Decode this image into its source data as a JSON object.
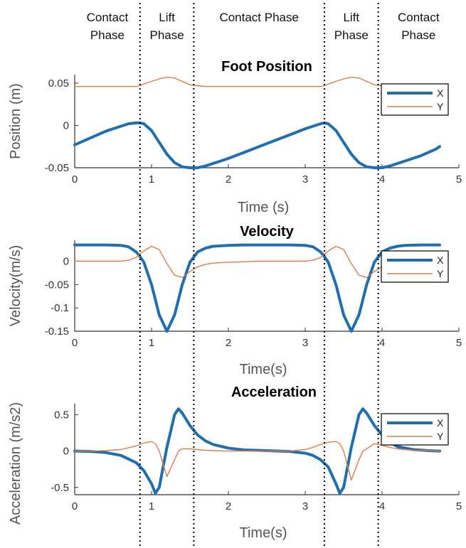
{
  "phases": [
    {
      "label_lines": [
        "Contact",
        "Phase"
      ]
    },
    {
      "label_lines": [
        "Lift",
        "Phase"
      ]
    },
    {
      "label_lines": [
        "Contact Phase"
      ]
    },
    {
      "label_lines": [
        "Lift",
        "Phase"
      ]
    },
    {
      "label_lines": [
        "Contact",
        "Phase"
      ]
    }
  ],
  "phase_boundaries_s": [
    0.85,
    1.55,
    3.25,
    3.95
  ],
  "colors": {
    "x_series": "#1f6fb0",
    "y_series": "#e07b4a",
    "axis": "#333333",
    "boundary": "#000000"
  },
  "chart_data": [
    {
      "type": "line",
      "title": "Foot Position",
      "xlabel": "Time (s)",
      "ylabel": "Position (m)",
      "xlim": [
        0,
        5
      ],
      "ylim": [
        -0.05,
        0.06
      ],
      "xticks": [
        0,
        1,
        2,
        3,
        4,
        5
      ],
      "xtick_labels": [
        "0",
        "1",
        "2",
        "3",
        "4",
        "5"
      ],
      "yticks": [
        -0.05,
        0,
        0.05
      ],
      "ytick_labels": [
        "-0.05",
        "0",
        "0.05"
      ],
      "legend": "top-right",
      "x": [
        0,
        0.1,
        0.2,
        0.3,
        0.4,
        0.5,
        0.6,
        0.7,
        0.8,
        0.85,
        0.9,
        1.0,
        1.1,
        1.2,
        1.3,
        1.4,
        1.5,
        1.6,
        1.7,
        1.8,
        1.9,
        2.0,
        2.2,
        2.4,
        2.6,
        2.8,
        3.0,
        3.1,
        3.2,
        3.25,
        3.3,
        3.4,
        3.5,
        3.6,
        3.7,
        3.8,
        3.9,
        4.0,
        4.1,
        4.2,
        4.3,
        4.4,
        4.5,
        4.6,
        4.7,
        4.75
      ],
      "series": [
        {
          "name": "X",
          "values": [
            -0.023,
            -0.019,
            -0.015,
            -0.011,
            -0.007,
            -0.004,
            -0.001,
            0.002,
            0.003,
            0.003,
            0.002,
            -0.006,
            -0.02,
            -0.034,
            -0.044,
            -0.049,
            -0.05,
            -0.05,
            -0.048,
            -0.045,
            -0.042,
            -0.039,
            -0.032,
            -0.025,
            -0.018,
            -0.011,
            -0.004,
            -0.001,
            0.002,
            0.003,
            0.002,
            -0.006,
            -0.02,
            -0.034,
            -0.044,
            -0.049,
            -0.05,
            -0.05,
            -0.048,
            -0.045,
            -0.042,
            -0.039,
            -0.036,
            -0.032,
            -0.028,
            -0.025
          ]
        },
        {
          "name": "Y",
          "values": [
            0.046,
            0.046,
            0.046,
            0.046,
            0.046,
            0.046,
            0.046,
            0.046,
            0.046,
            0.047,
            0.049,
            0.052,
            0.055,
            0.057,
            0.056,
            0.052,
            0.048,
            0.047,
            0.046,
            0.046,
            0.046,
            0.046,
            0.046,
            0.046,
            0.046,
            0.046,
            0.046,
            0.046,
            0.046,
            0.047,
            0.049,
            0.052,
            0.055,
            0.057,
            0.056,
            0.052,
            0.048,
            0.047,
            0.046,
            0.046,
            0.046,
            0.046,
            0.046,
            0.046,
            0.046,
            0.046
          ]
        }
      ]
    },
    {
      "type": "line",
      "title": "Velocity",
      "xlabel": "Time(s)",
      "ylabel": "Velocity(m/s)",
      "xlim": [
        0,
        5
      ],
      "ylim": [
        -0.15,
        0.045
      ],
      "xticks": [
        0,
        1,
        2,
        3,
        4,
        5
      ],
      "xtick_labels": [
        "0",
        "1",
        "2",
        "3",
        "4",
        "5"
      ],
      "yticks": [
        -0.15,
        -0.1,
        -0.05,
        0
      ],
      "ytick_labels": [
        "-0.15",
        "-0.1",
        "-0.05",
        "0"
      ],
      "legend": "right",
      "x": [
        0,
        0.2,
        0.4,
        0.6,
        0.7,
        0.8,
        0.85,
        0.9,
        1.0,
        1.1,
        1.2,
        1.3,
        1.4,
        1.5,
        1.6,
        1.7,
        1.8,
        2.0,
        2.2,
        2.4,
        2.6,
        2.8,
        3.0,
        3.1,
        3.2,
        3.25,
        3.3,
        3.4,
        3.5,
        3.6,
        3.7,
        3.8,
        3.9,
        4.0,
        4.1,
        4.2,
        4.3,
        4.5,
        4.7,
        4.75
      ],
      "series": [
        {
          "name": "X",
          "values": [
            0.035,
            0.035,
            0.035,
            0.034,
            0.031,
            0.02,
            0.01,
            -0.002,
            -0.05,
            -0.115,
            -0.15,
            -0.115,
            -0.05,
            -0.002,
            0.02,
            0.028,
            0.032,
            0.034,
            0.035,
            0.035,
            0.035,
            0.035,
            0.034,
            0.031,
            0.02,
            0.01,
            -0.002,
            -0.05,
            -0.115,
            -0.15,
            -0.115,
            -0.05,
            -0.002,
            0.02,
            0.028,
            0.032,
            0.034,
            0.035,
            0.035,
            0.035
          ]
        },
        {
          "name": "Y",
          "values": [
            0,
            0,
            0,
            0,
            0.002,
            0.008,
            0.015,
            0.022,
            0.032,
            0.025,
            -0.005,
            -0.03,
            -0.035,
            -0.022,
            -0.012,
            -0.007,
            -0.004,
            -0.002,
            -0.001,
            0,
            0,
            0,
            0,
            0.002,
            0.008,
            0.015,
            0.022,
            0.032,
            0.025,
            -0.005,
            -0.03,
            -0.035,
            -0.022,
            -0.012,
            -0.007,
            -0.004,
            -0.002,
            -0.001,
            0,
            0
          ]
        }
      ]
    },
    {
      "type": "line",
      "title": "Acceleration",
      "xlabel": "Time(s)",
      "ylabel": "Acceleration (m/s2)",
      "xlim": [
        0,
        5
      ],
      "ylim": [
        -0.6,
        0.65
      ],
      "xticks": [
        0,
        1,
        2,
        3,
        4,
        5
      ],
      "xtick_labels": [
        "0",
        "1",
        "2",
        "3",
        "4",
        "5"
      ],
      "yticks": [
        -0.5,
        0,
        0.5
      ],
      "ytick_labels": [
        "-0.5",
        "0",
        "0.5"
      ],
      "legend": "right",
      "x": [
        0,
        0.2,
        0.4,
        0.6,
        0.8,
        0.9,
        1.0,
        1.05,
        1.1,
        1.2,
        1.3,
        1.35,
        1.4,
        1.5,
        1.6,
        1.7,
        1.8,
        2.0,
        2.2,
        2.5,
        2.8,
        3.0,
        3.1,
        3.2,
        3.3,
        3.4,
        3.45,
        3.5,
        3.6,
        3.7,
        3.75,
        3.8,
        3.9,
        4.0,
        4.1,
        4.2,
        4.4,
        4.6,
        4.75
      ],
      "series": [
        {
          "name": "X",
          "values": [
            0,
            -0.005,
            -0.02,
            -0.06,
            -0.16,
            -0.27,
            -0.45,
            -0.58,
            -0.5,
            0.05,
            0.5,
            0.58,
            0.52,
            0.35,
            0.22,
            0.14,
            0.09,
            0.04,
            0.015,
            0.005,
            -0.005,
            -0.03,
            -0.06,
            -0.12,
            -0.22,
            -0.45,
            -0.58,
            -0.5,
            0.05,
            0.5,
            0.58,
            0.52,
            0.35,
            0.22,
            0.12,
            0.06,
            0.02,
            0.005,
            0
          ]
        },
        {
          "name": "Y",
          "values": [
            0,
            0,
            0.005,
            0.02,
            0.07,
            0.11,
            0.13,
            0.1,
            0.0,
            -0.35,
            -0.12,
            0.0,
            0.03,
            0.03,
            0.02,
            0.01,
            0.005,
            0,
            0,
            0,
            0,
            0.02,
            0.05,
            0.09,
            0.12,
            0.13,
            0.1,
            0.0,
            -0.4,
            -0.12,
            0.0,
            0.03,
            0.1,
            0.08,
            0.05,
            0.03,
            0.01,
            0.005,
            0
          ]
        }
      ]
    }
  ]
}
